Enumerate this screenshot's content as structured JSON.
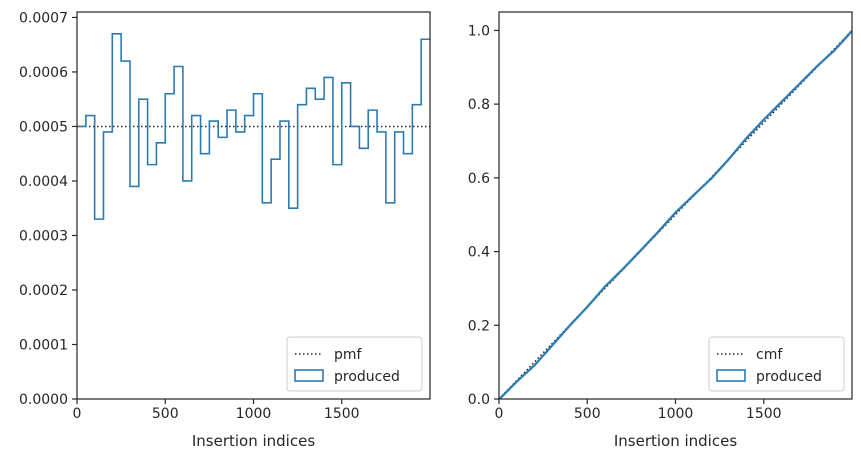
{
  "colors": {
    "series": "#2b7bb0",
    "reference": "#262626",
    "axes": "#262626",
    "text": "#262626",
    "legend_border": "#cccccc"
  },
  "chart_data": [
    {
      "type": "step",
      "xlabel": "Insertion indices",
      "ylabel": "",
      "xlim": [
        0,
        2000
      ],
      "ylim": [
        0,
        0.00071
      ],
      "xticks": [
        0,
        500,
        1000,
        1500
      ],
      "xtick_labels": [
        "0",
        "500",
        "1000",
        "1500"
      ],
      "yticks": [
        0,
        0.0001,
        0.0002,
        0.0003,
        0.0004,
        0.0005,
        0.0006,
        0.0007
      ],
      "ytick_labels": [
        "0.0000",
        "0.0001",
        "0.0002",
        "0.0003",
        "0.0004",
        "0.0005",
        "0.0006",
        "0.0007"
      ],
      "legend_position": "lower right",
      "legend": [
        "pmf",
        "produced"
      ],
      "reference": {
        "name": "pmf",
        "style": "dotted",
        "y": 0.0005
      },
      "series": [
        {
          "name": "produced",
          "style": "step",
          "bin_edges": [
            0,
            50,
            100,
            150,
            200,
            250,
            300,
            350,
            400,
            450,
            500,
            550,
            600,
            650,
            700,
            750,
            800,
            850,
            900,
            950,
            1000,
            1050,
            1100,
            1150,
            1200,
            1250,
            1300,
            1350,
            1400,
            1450,
            1500,
            1550,
            1600,
            1650,
            1700,
            1750,
            1800,
            1850,
            1900,
            1950,
            2000
          ],
          "values": [
            0.0005,
            0.00052,
            0.00033,
            0.00049,
            0.00067,
            0.00062,
            0.00039,
            0.00055,
            0.00043,
            0.00047,
            0.00056,
            0.00061,
            0.0004,
            0.00052,
            0.00045,
            0.00051,
            0.00048,
            0.00053,
            0.00049,
            0.00052,
            0.00056,
            0.00036,
            0.00044,
            0.00051,
            0.00035,
            0.00054,
            0.00057,
            0.00055,
            0.00059,
            0.00043,
            0.00058,
            0.0005,
            0.00046,
            0.00053,
            0.00049,
            0.00036,
            0.00049,
            0.00045,
            0.00054,
            0.00066
          ]
        }
      ]
    },
    {
      "type": "line",
      "xlabel": "Insertion indices",
      "ylabel": "",
      "xlim": [
        0,
        2000
      ],
      "ylim": [
        0,
        1.05
      ],
      "xticks": [
        0,
        500,
        1000,
        1500
      ],
      "xtick_labels": [
        "0",
        "500",
        "1000",
        "1500"
      ],
      "yticks": [
        0,
        0.2,
        0.4,
        0.6,
        0.8,
        1.0
      ],
      "ytick_labels": [
        "0.0",
        "0.2",
        "0.4",
        "0.6",
        "0.8",
        "1.0"
      ],
      "legend_position": "lower right",
      "legend": [
        "cmf",
        "produced"
      ],
      "reference": {
        "name": "cmf",
        "style": "dotted",
        "x": [
          0,
          2000
        ],
        "y": [
          0,
          1
        ]
      },
      "series": [
        {
          "name": "produced",
          "style": "step",
          "x": [
            0,
            100,
            200,
            300,
            400,
            500,
            600,
            700,
            800,
            900,
            1000,
            1100,
            1200,
            1300,
            1400,
            1500,
            1600,
            1700,
            1800,
            1900,
            2000
          ],
          "y": [
            0,
            0.048,
            0.092,
            0.146,
            0.2,
            0.251,
            0.306,
            0.353,
            0.403,
            0.454,
            0.507,
            0.553,
            0.598,
            0.651,
            0.708,
            0.759,
            0.807,
            0.855,
            0.903,
            0.947,
            1.0
          ]
        }
      ]
    }
  ]
}
